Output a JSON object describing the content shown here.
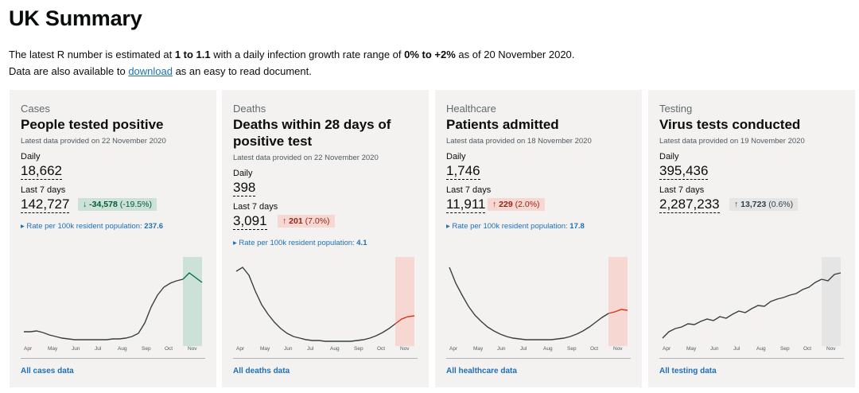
{
  "title": "UK Summary",
  "intro": {
    "r_prefix": "The latest R number is estimated at ",
    "r_value": "1 to 1.1",
    "r_mid": " with a daily infection growth rate range of ",
    "growth": "0% to +2%",
    "r_suffix": " as of 20 November 2020.",
    "dl_prefix": "Data are also available to ",
    "dl_link": "download",
    "dl_suffix": " as an easy to read document."
  },
  "months": [
    "Apr",
    "May",
    "Jun",
    "Jul",
    "Aug",
    "Sep",
    "Oct",
    "Nov"
  ],
  "cards": [
    {
      "category": "Cases",
      "heading": "People tested positive",
      "updated": "Latest data provided on 22 November 2020",
      "daily_label": "Daily",
      "daily": "18,662",
      "week_label": "Last 7 days",
      "week": "142,727",
      "change_arrow": "↓",
      "change_value": "-34,578",
      "change_pct": "(-19.5%)",
      "change_color": "green",
      "rate_label": "▸ Rate per 100k resident population: ",
      "rate_value": "237.6",
      "link": "All cases data",
      "highlight_color": "#cce2d8",
      "line_highlight": "#00703c",
      "series": [
        0.14,
        0.14,
        0.15,
        0.13,
        0.1,
        0.08,
        0.06,
        0.05,
        0.04,
        0.04,
        0.04,
        0.04,
        0.04,
        0.04,
        0.05,
        0.05,
        0.06,
        0.08,
        0.12,
        0.25,
        0.45,
        0.6,
        0.7,
        0.75,
        0.78,
        0.8,
        0.88,
        0.82,
        0.76
      ]
    },
    {
      "category": "Deaths",
      "heading": "Deaths within 28 days of positive test",
      "updated": "Latest data provided on 22 November 2020",
      "daily_label": "Daily",
      "daily": "398",
      "week_label": "Last 7 days",
      "week": "3,091",
      "change_arrow": "↑",
      "change_value": "201",
      "change_pct": "(7.0%)",
      "change_color": "red",
      "rate_label": "▸ Rate per 100k resident population: ",
      "rate_value": "4.1",
      "link": "All deaths data",
      "highlight_color": "#f6d7d2",
      "line_highlight": "#d4351c",
      "series": [
        0.9,
        0.95,
        0.85,
        0.65,
        0.48,
        0.36,
        0.26,
        0.18,
        0.12,
        0.08,
        0.06,
        0.04,
        0.03,
        0.03,
        0.02,
        0.02,
        0.02,
        0.02,
        0.02,
        0.03,
        0.04,
        0.06,
        0.09,
        0.13,
        0.18,
        0.24,
        0.3,
        0.33,
        0.34
      ]
    },
    {
      "category": "Healthcare",
      "heading": "Patients admitted",
      "updated": "Latest data provided on 18 November 2020",
      "daily_label": "Daily",
      "daily": "1,746",
      "week_label": "Last 7 days",
      "week": "11,911",
      "change_arrow": "↑",
      "change_value": "229",
      "change_pct": "(2.0%)",
      "change_color": "red",
      "rate_label": "▸ Rate per 100k resident population: ",
      "rate_value": "17.8",
      "link": "All healthcare data",
      "highlight_color": "#f6d7d2",
      "line_highlight": "#d4351c",
      "series": [
        0.95,
        0.75,
        0.6,
        0.46,
        0.35,
        0.27,
        0.2,
        0.15,
        0.11,
        0.08,
        0.06,
        0.05,
        0.04,
        0.04,
        0.04,
        0.04,
        0.04,
        0.05,
        0.06,
        0.08,
        0.11,
        0.15,
        0.2,
        0.26,
        0.32,
        0.37,
        0.39,
        0.42,
        0.41
      ]
    },
    {
      "category": "Testing",
      "heading": "Virus tests conducted",
      "updated": "Latest data provided on 19 November 2020",
      "daily_label": "Daily",
      "daily": "395,436",
      "week_label": "Last 7 days",
      "week": "2,287,233",
      "change_arrow": "↑",
      "change_value": "13,723",
      "change_pct": "(0.6%)",
      "change_color": "grey",
      "rate_label": "",
      "rate_value": "",
      "link": "All testing data",
      "highlight_color": "#e5e5e5",
      "line_highlight": "#383f43",
      "series": [
        0.06,
        0.14,
        0.18,
        0.2,
        0.24,
        0.23,
        0.27,
        0.3,
        0.28,
        0.33,
        0.31,
        0.36,
        0.4,
        0.38,
        0.43,
        0.47,
        0.46,
        0.52,
        0.55,
        0.57,
        0.6,
        0.62,
        0.67,
        0.7,
        0.76,
        0.8,
        0.78,
        0.86,
        0.88
      ]
    }
  ]
}
